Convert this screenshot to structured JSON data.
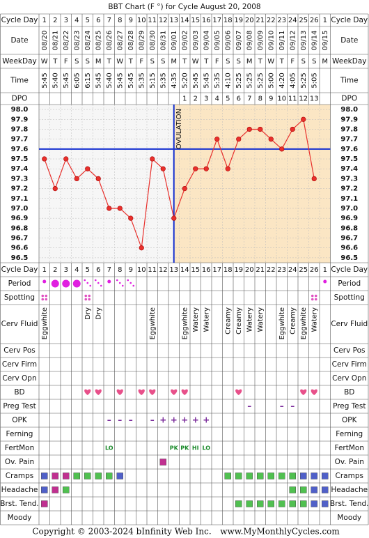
{
  "chart_data": {
    "type": "line",
    "title": "BBT Chart (F °) for Cycle August 20, 2008",
    "row_labels": {
      "cycle_day": "Cycle Day",
      "date": "Date",
      "weekday": "WeekDay",
      "time": "Time",
      "dpo": "DPO"
    },
    "categories": [
      1,
      2,
      3,
      4,
      5,
      6,
      7,
      8,
      9,
      10,
      11,
      12,
      13,
      14,
      15,
      16,
      17,
      18,
      19,
      20,
      21,
      22,
      23,
      24,
      25,
      26,
      1
    ],
    "dates": [
      "08/20",
      "08/21",
      "08/22",
      "08/23",
      "08/24",
      "08/25",
      "08/26",
      "08/27",
      "08/28",
      "08/29",
      "08/30",
      "08/31",
      "09/01",
      "09/02",
      "09/03",
      "09/04",
      "09/05",
      "09/06",
      "09/07",
      "09/08",
      "09/09",
      "09/10",
      "09/11",
      "09/12",
      "09/13",
      "09/14",
      "09/15"
    ],
    "weekdays": [
      "W",
      "T",
      "F",
      "S",
      "S",
      "M",
      "T",
      "W",
      "T",
      "F",
      "S",
      "S",
      "M",
      "T",
      "W",
      "T",
      "F",
      "S",
      "S",
      "M",
      "T",
      "W",
      "T",
      "F",
      "S",
      "S",
      "M"
    ],
    "times": [
      "5:45",
      "5:40",
      "5:45",
      "6:05",
      "6:15",
      "5:45",
      "5:40",
      "5:45",
      "5:45",
      "5:35",
      "5:15",
      "5:35",
      "4:35",
      "5:20",
      "5:45",
      "5:45",
      "5:35",
      "4:10",
      "5:25",
      "5:25",
      "5:25",
      "5:00",
      "4:20",
      "4:05",
      "5:25",
      "5:05",
      null
    ],
    "dpo": [
      null,
      null,
      null,
      null,
      null,
      null,
      null,
      null,
      null,
      null,
      null,
      null,
      null,
      1,
      2,
      3,
      4,
      5,
      6,
      7,
      8,
      9,
      10,
      11,
      12,
      13,
      null
    ],
    "values": [
      97.5,
      97.2,
      97.5,
      97.3,
      97.4,
      97.3,
      97.0,
      97.0,
      96.9,
      96.6,
      97.5,
      97.4,
      96.9,
      97.2,
      97.4,
      97.4,
      97.7,
      97.4,
      97.7,
      97.8,
      97.8,
      97.7,
      97.6,
      97.8,
      97.9,
      97.3,
      null
    ],
    "color": "#e8302c",
    "ylim": [
      96.45,
      98.05
    ],
    "yticks": [
      {
        "value": 98,
        "label": "98.0"
      },
      97.9,
      97.8,
      97.7,
      97.6,
      97.5,
      97.4,
      97.3,
      97.2,
      97.1,
      {
        "value": 97,
        "label": "97.0"
      },
      96.9,
      96.8,
      96.7,
      96.6,
      96.5
    ],
    "grid": true,
    "coverline": 97.6,
    "coverline_color": "#1530d0",
    "ovulation_day": 13,
    "ovulation_label": "OVULATION",
    "post_ovulation_color": "#fbe6c4"
  },
  "observations": [
    {
      "label": "Period",
      "kind": "period",
      "values": [
        "light",
        "heavy",
        "heavy",
        "heavy",
        "spotting",
        "spotting",
        "light",
        "spotting",
        "spotting",
        null,
        null,
        null,
        null,
        null,
        null,
        null,
        null,
        null,
        null,
        null,
        null,
        null,
        null,
        null,
        null,
        null,
        "light"
      ]
    },
    {
      "label": "Spotting",
      "kind": "spots",
      "values": [
        true,
        null,
        null,
        null,
        true,
        null,
        null,
        null,
        null,
        null,
        null,
        null,
        null,
        null,
        null,
        null,
        null,
        null,
        null,
        null,
        null,
        null,
        null,
        null,
        null,
        true,
        null
      ]
    },
    {
      "label": "Cerv Fluid",
      "kind": "vtext",
      "values": [
        "Eggwhite",
        null,
        null,
        null,
        "Dry",
        "Dry",
        null,
        null,
        null,
        null,
        "Eggwhite",
        null,
        null,
        "Eggwhite",
        "Watery",
        "Watery",
        null,
        "Creamy",
        "Creamy",
        "Watery",
        "Watery",
        null,
        "Eggwhite",
        "Creamy",
        "Eggwhite",
        "Watery",
        null
      ]
    },
    {
      "label": "Cerv Pos",
      "kind": "text",
      "values": [
        null,
        null,
        null,
        null,
        null,
        null,
        null,
        null,
        null,
        null,
        null,
        null,
        null,
        null,
        null,
        null,
        null,
        null,
        null,
        null,
        null,
        null,
        null,
        null,
        null,
        null,
        null
      ]
    },
    {
      "label": "Cerv Firm",
      "kind": "text",
      "values": [
        null,
        null,
        null,
        null,
        null,
        null,
        null,
        null,
        null,
        null,
        null,
        null,
        null,
        null,
        null,
        null,
        null,
        null,
        null,
        null,
        null,
        null,
        null,
        null,
        null,
        null,
        null
      ]
    },
    {
      "label": "Cerv Opn",
      "kind": "text",
      "values": [
        null,
        null,
        null,
        null,
        null,
        null,
        null,
        null,
        null,
        null,
        null,
        null,
        null,
        null,
        null,
        null,
        null,
        null,
        null,
        null,
        null,
        null,
        null,
        null,
        null,
        null,
        null
      ]
    },
    {
      "label": "BD",
      "kind": "heart",
      "color": "#e8508a",
      "values": [
        null,
        null,
        null,
        null,
        true,
        true,
        null,
        true,
        null,
        true,
        true,
        null,
        true,
        true,
        null,
        null,
        null,
        null,
        true,
        null,
        null,
        null,
        null,
        null,
        true,
        true,
        null
      ]
    },
    {
      "label": "Preg Test",
      "kind": "text",
      "color": "#7a2a9a",
      "values": [
        null,
        null,
        null,
        null,
        null,
        null,
        null,
        null,
        null,
        null,
        null,
        null,
        null,
        null,
        null,
        null,
        null,
        null,
        null,
        "–",
        null,
        null,
        "–",
        "–",
        null,
        null,
        null
      ]
    },
    {
      "label": "OPK",
      "kind": "text",
      "color": "#7a2a9a",
      "values": [
        null,
        null,
        null,
        null,
        null,
        null,
        "–",
        "–",
        "–",
        null,
        "–",
        "+",
        "+",
        "+",
        "+",
        "+",
        null,
        null,
        null,
        null,
        null,
        null,
        null,
        null,
        null,
        null,
        null
      ]
    },
    {
      "label": "Ferning",
      "kind": "text",
      "values": [
        null,
        null,
        null,
        null,
        null,
        null,
        null,
        null,
        null,
        null,
        null,
        null,
        null,
        null,
        null,
        null,
        null,
        null,
        null,
        null,
        null,
        null,
        null,
        null,
        null,
        null,
        null
      ]
    },
    {
      "label": "FertMon",
      "kind": "text",
      "color": "#1a8a2a",
      "values": [
        null,
        null,
        null,
        null,
        null,
        null,
        "LO",
        null,
        null,
        null,
        null,
        null,
        "PK",
        "PK",
        "HI",
        "LO",
        null,
        null,
        null,
        null,
        null,
        null,
        null,
        null,
        null,
        null,
        null
      ]
    },
    {
      "label": "Ov. Pain",
      "kind": "square",
      "values": [
        null,
        null,
        null,
        null,
        null,
        null,
        null,
        null,
        null,
        null,
        null,
        "#c03090",
        null,
        null,
        null,
        null,
        null,
        null,
        null,
        null,
        null,
        null,
        null,
        null,
        null,
        null,
        null
      ]
    },
    {
      "label": "Cramps",
      "kind": "square",
      "values": [
        "#5060c8",
        "#c03090",
        "#c03090",
        "#50c050",
        "#50c050",
        "#50c050",
        "#50c050",
        "#5060c8",
        null,
        null,
        null,
        null,
        null,
        null,
        null,
        null,
        null,
        "#50c050",
        "#50c050",
        "#50c050",
        "#50c050",
        "#50c050",
        "#50c050",
        "#50c050",
        "#5060c8",
        "#5060c8",
        "#5060c8"
      ]
    },
    {
      "label": "Headache",
      "kind": "square",
      "values": [
        "#5060c8",
        "#c03090",
        "#50c050",
        null,
        null,
        null,
        null,
        null,
        null,
        null,
        null,
        null,
        null,
        null,
        null,
        null,
        null,
        null,
        null,
        null,
        null,
        null,
        null,
        "#50c050",
        "#50c050",
        "#5060c8",
        "#5060c8"
      ]
    },
    {
      "label": "Brst. Tend.",
      "kind": "square",
      "values": [
        "#c03090",
        null,
        null,
        null,
        null,
        null,
        null,
        null,
        null,
        null,
        null,
        null,
        null,
        null,
        null,
        null,
        null,
        null,
        "#50c050",
        "#50c050",
        "#50c050",
        "#50c050",
        "#50c050",
        "#50c050",
        "#50c050",
        "#5060c8",
        "#5060c8"
      ]
    },
    {
      "label": "Moody",
      "kind": "text",
      "values": [
        null,
        null,
        null,
        null,
        null,
        null,
        null,
        null,
        null,
        null,
        null,
        null,
        null,
        null,
        null,
        null,
        null,
        null,
        null,
        null,
        null,
        null,
        null,
        null,
        null,
        null,
        null
      ]
    }
  ],
  "footer": {
    "copyright": "Copyright © 2003-2024 bInfinity Web Inc.",
    "site": "www.MyMonthlyCycles.com"
  }
}
